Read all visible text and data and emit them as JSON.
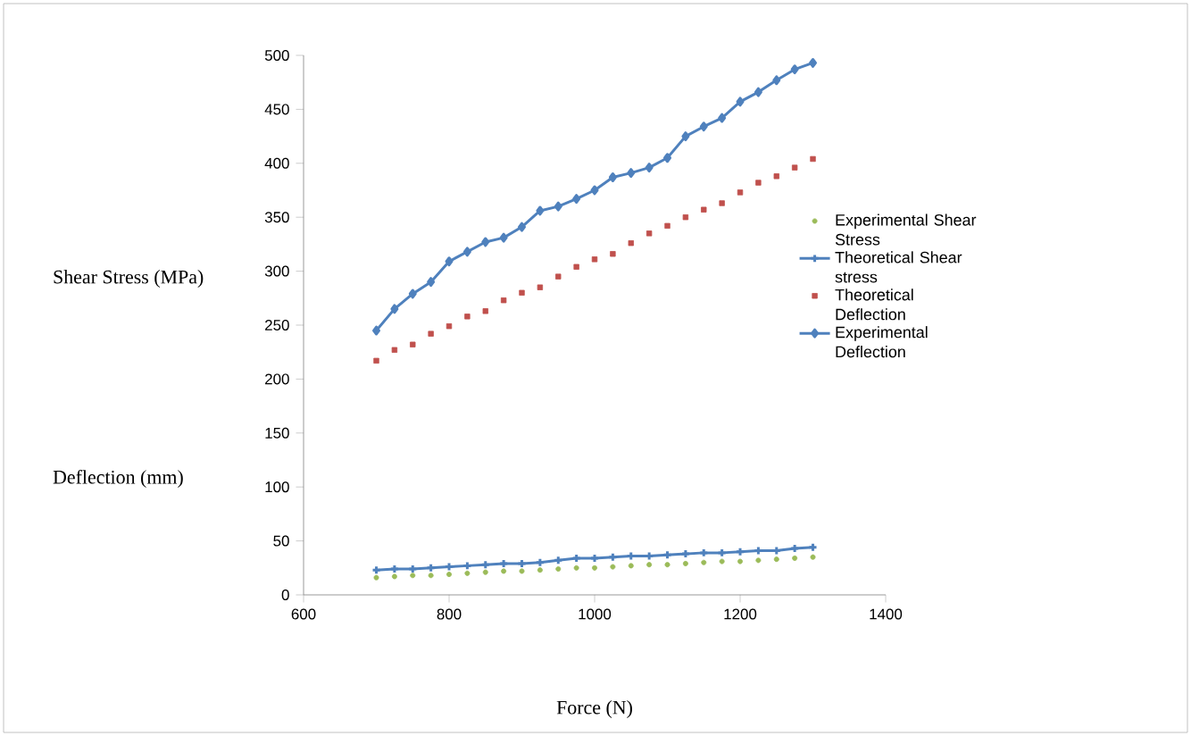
{
  "chart_data": {
    "type": "line",
    "xlabel": "Force (N)",
    "ylabel": "Shear Stress (MPa)",
    "annotations": [
      "Deflection (mm)"
    ],
    "x": [
      700,
      725,
      750,
      775,
      800,
      825,
      850,
      875,
      900,
      925,
      950,
      975,
      1000,
      1025,
      1050,
      1075,
      1100,
      1125,
      1150,
      1175,
      1200,
      1225,
      1250,
      1275,
      1300
    ],
    "series": [
      {
        "name": "Experimental Shear Stress",
        "type": "scatter",
        "marker": "circle",
        "color": "#9bbb59",
        "values": [
          16,
          17,
          18,
          18,
          19,
          20,
          21,
          22,
          22,
          23,
          24,
          25,
          25,
          26,
          27,
          28,
          28,
          29,
          30,
          31,
          31,
          32,
          33,
          34,
          35
        ]
      },
      {
        "name": "Theoretical Shear stress",
        "marker": "cross",
        "color": "#4f81bd",
        "values": [
          23,
          24,
          24,
          25,
          26,
          27,
          28,
          29,
          29,
          30,
          32,
          34,
          34,
          35,
          36,
          36,
          37,
          38,
          39,
          39,
          40,
          41,
          41,
          43,
          44
        ]
      },
      {
        "name": "Theoretical Deflection",
        "type": "scatter",
        "marker": "square",
        "color": "#c0504d",
        "values": [
          217,
          227,
          232,
          242,
          249,
          258,
          263,
          273,
          280,
          285,
          295,
          304,
          311,
          316,
          326,
          335,
          342,
          350,
          357,
          363,
          373,
          382,
          388,
          396,
          404
        ]
      },
      {
        "name": "Experimental Deflection",
        "marker": "diamond",
        "color": "#4f81bd",
        "values": [
          245,
          265,
          279,
          290,
          309,
          318,
          327,
          331,
          341,
          356,
          360,
          367,
          375,
          387,
          391,
          396,
          405,
          425,
          434,
          442,
          457,
          466,
          477,
          487,
          493
        ]
      }
    ],
    "xlim": [
      600,
      1400
    ],
    "ylim": [
      0,
      500
    ],
    "xticks": [
      600,
      800,
      1000,
      1200,
      1400
    ],
    "yticks": [
      0,
      50,
      100,
      150,
      200,
      250,
      300,
      350,
      400,
      450,
      500
    ],
    "grid": false,
    "legend": "right"
  }
}
